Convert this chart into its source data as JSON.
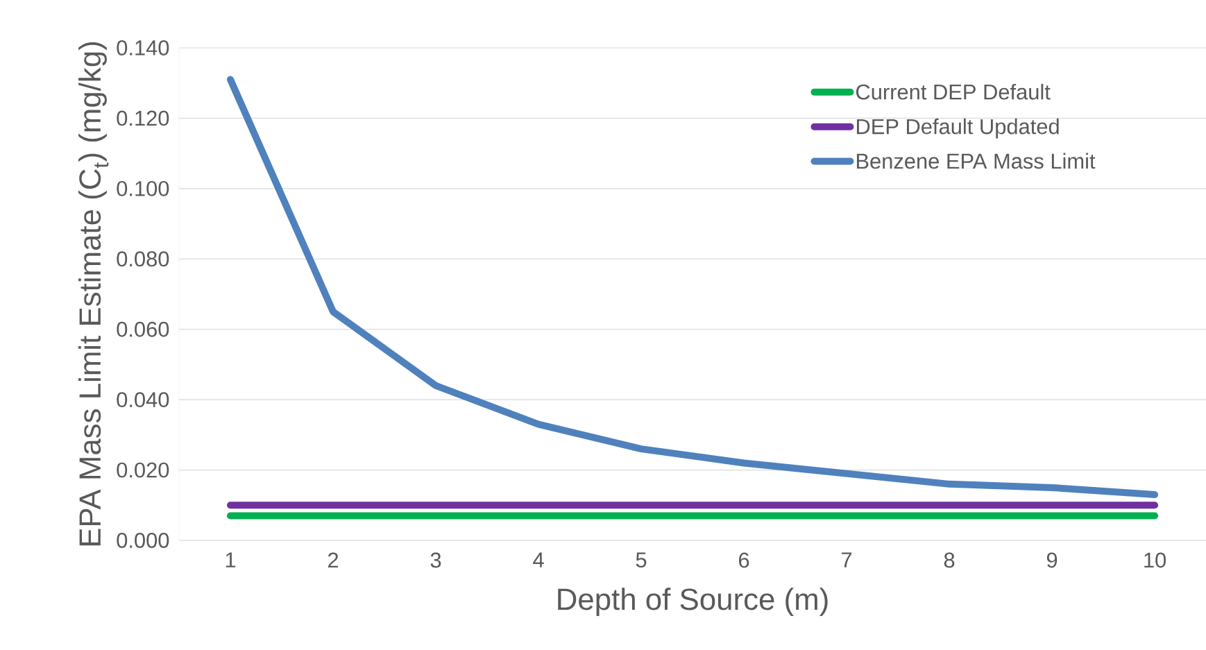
{
  "chart_data": {
    "type": "line",
    "xlabel": "Depth of Source (m)",
    "ylabel": "EPA Mass Limit Estimate (C$_{t}$) (mg/kg)",
    "categories": [
      "1",
      "2",
      "3",
      "4",
      "5",
      "6",
      "7",
      "8",
      "9",
      "10"
    ],
    "series": [
      {
        "name": "Current DEP Default",
        "color": "#00b050",
        "values": [
          0.007,
          0.007,
          0.007,
          0.007,
          0.007,
          0.007,
          0.007,
          0.007,
          0.007,
          0.007
        ]
      },
      {
        "name": "DEP Default Updated",
        "color": "#7030a0",
        "values": [
          0.01,
          0.01,
          0.01,
          0.01,
          0.01,
          0.01,
          0.01,
          0.01,
          0.01,
          0.01
        ]
      },
      {
        "name": "Benzene EPA Mass Limit",
        "color": "#4f81bd",
        "values": [
          0.131,
          0.065,
          0.044,
          0.033,
          0.026,
          0.022,
          0.019,
          0.016,
          0.015,
          0.013
        ]
      }
    ],
    "ylim": [
      0,
      0.14
    ],
    "yticks": [
      {
        "value": 0,
        "label": "0.000"
      },
      {
        "value": 0.02,
        "label": "0.020"
      },
      {
        "value": 0.04,
        "label": "0.040"
      },
      {
        "value": 0.06,
        "label": "0.060"
      },
      {
        "value": 0.08,
        "label": "0.080"
      },
      {
        "value": 0.1,
        "label": "0.100"
      },
      {
        "value": 0.12,
        "label": "0.120"
      },
      {
        "value": 0.14,
        "label": "0.140"
      }
    ],
    "grid": "y",
    "legend": "top right",
    "marker": "none",
    "line_style": "solid"
  }
}
